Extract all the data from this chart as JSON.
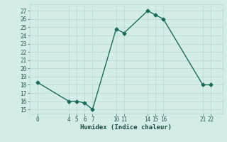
{
  "x": [
    0,
    4,
    5,
    6,
    7,
    10,
    11,
    14,
    15,
    16,
    21,
    22
  ],
  "y": [
    18.3,
    16.0,
    16.0,
    15.8,
    15.0,
    24.8,
    24.3,
    27.0,
    26.5,
    26.0,
    18.0,
    18.0
  ],
  "xticks": [
    0,
    4,
    5,
    6,
    7,
    10,
    11,
    14,
    15,
    16,
    21,
    22
  ],
  "yticks": [
    15,
    16,
    17,
    18,
    19,
    20,
    21,
    22,
    23,
    24,
    25,
    26,
    27
  ],
  "xlim": [
    -1,
    23.5
  ],
  "ylim": [
    14.5,
    27.8
  ],
  "xlabel": "Humidex (Indice chaleur)",
  "line_color": "#1a6b5a",
  "bg_color": "#d4ece8",
  "grid_color": "#b8d8d3",
  "marker": "D",
  "markersize": 2.5,
  "linewidth": 1.0,
  "tick_fontsize": 5.5,
  "xlabel_fontsize": 6.5
}
